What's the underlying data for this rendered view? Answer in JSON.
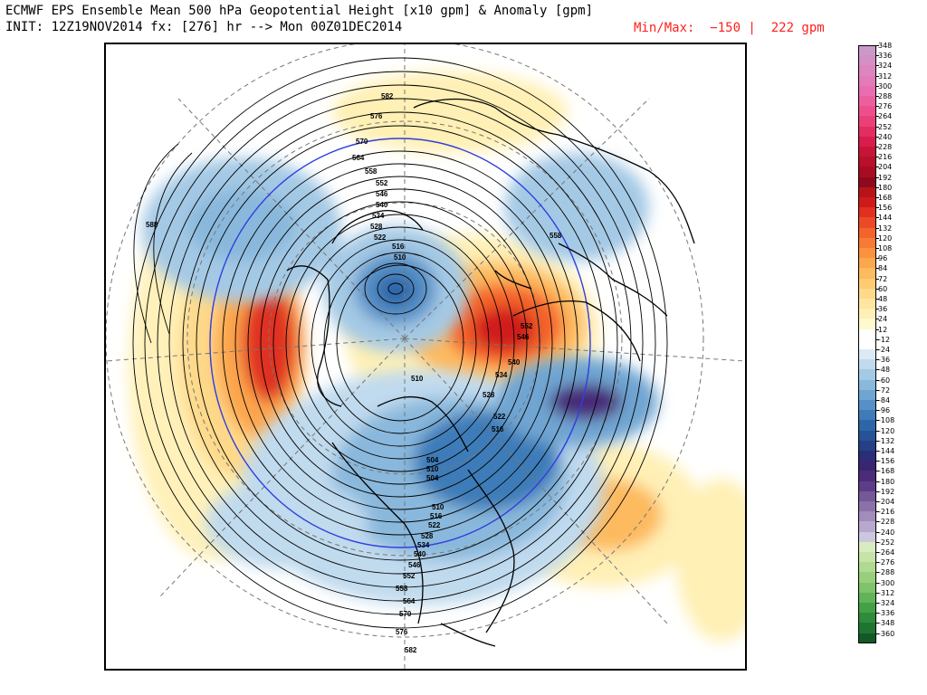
{
  "header": {
    "title_line1": "ECMWF EPS Ensemble Mean 500 hPa Geopotential Height [x10 gpm] & Anomaly [gpm]",
    "title_line2": "INIT: 12Z19NOV2014 fx: [276] hr --> Mon 00Z01DEC2014",
    "minmax_text": "Min/Max:  −150 |  222 gpm"
  },
  "legend": {
    "labels": [
      "348",
      "336",
      "324",
      "312",
      "300",
      "288",
      "276",
      "264",
      "252",
      "240",
      "228",
      "216",
      "204",
      "192",
      "180",
      "168",
      "156",
      "144",
      "132",
      "120",
      "108",
      "96",
      "84",
      "72",
      "60",
      "48",
      "36",
      "24",
      "12",
      "-12",
      "-24",
      "-36",
      "-48",
      "-60",
      "-72",
      "-84",
      "-96",
      "-108",
      "-120",
      "-132",
      "-144",
      "-156",
      "-168",
      "-180",
      "-192",
      "-204",
      "-216",
      "-228",
      "-240",
      "-252",
      "-264",
      "-276",
      "-288",
      "-300",
      "-312",
      "-324",
      "-336",
      "-348",
      "-360"
    ],
    "colors": [
      "#c99ac9",
      "#d48fc4",
      "#dc85bf",
      "#e37ab9",
      "#e96db0",
      "#ec5f9f",
      "#ee4f8c",
      "#ea3f77",
      "#e22d62",
      "#d81c4c",
      "#c71437",
      "#b80f2a",
      "#a90b22",
      "#8e091d",
      "#b81418",
      "#d01a1a",
      "#e03020",
      "#ec4a26",
      "#f4632c",
      "#f87a34",
      "#fb923e",
      "#fca64e",
      "#fdba5f",
      "#fecb73",
      "#fed98a",
      "#fee5a0",
      "#fff0b5",
      "#fff9cf",
      "#ffffff",
      "#ffffff",
      "#dbeaf5",
      "#c0daee",
      "#a4c9e5",
      "#89b8dc",
      "#6fa5d2",
      "#5690c6",
      "#3e7bb8",
      "#2d66a8",
      "#265297",
      "#263f87",
      "#2a2e78",
      "#3a2670",
      "#4a2c78",
      "#5d3d88",
      "#745898",
      "#8a72a9",
      "#a08dbb",
      "#b6a9cd",
      "#cdc6df",
      "#d9ebc0",
      "#c6e3a8",
      "#b0d992",
      "#98cf7d",
      "#7fc36a",
      "#63b358",
      "#44a047",
      "#2f8a3b",
      "#1f7430",
      "#115a26"
    ]
  },
  "map": {
    "contour_labels": [
      "582",
      "576",
      "570",
      "564",
      "558",
      "552",
      "546",
      "540",
      "534",
      "528",
      "522",
      "516",
      "510",
      "588",
      "558",
      "552",
      "546",
      "540",
      "534",
      "528",
      "522",
      "516",
      "510",
      "504",
      "510",
      "504",
      "510",
      "516",
      "522",
      "528",
      "534",
      "540",
      "546",
      "552",
      "558",
      "564",
      "570",
      "576",
      "582"
    ]
  }
}
